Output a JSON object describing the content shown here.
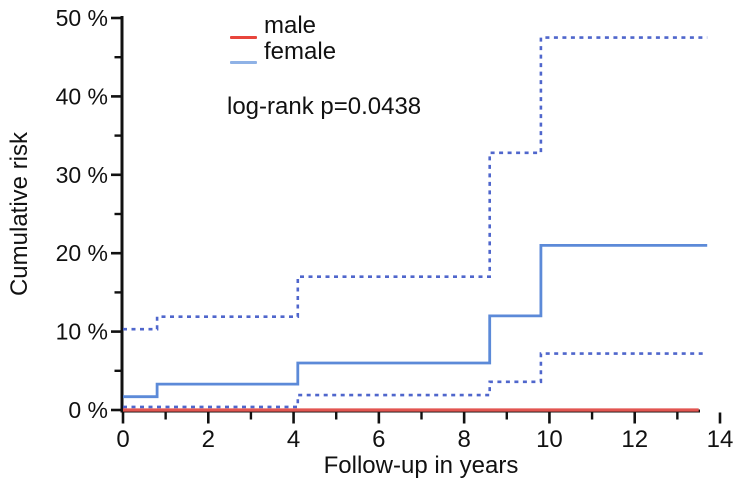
{
  "chart_data": {
    "type": "line",
    "subtype": "step-cumulative-incidence",
    "title": "",
    "xlabel": "Follow-up in years",
    "ylabel": "Cumulative risk",
    "annotation": "log-rank p=0.0438",
    "xlim": [
      0,
      14
    ],
    "ylim": [
      0,
      50
    ],
    "grid": false,
    "xticks": {
      "major": [
        0,
        2,
        4,
        6,
        8,
        10,
        12,
        14
      ],
      "labels": [
        "0",
        "2",
        "4",
        "6",
        "8",
        "10",
        "12",
        "14"
      ],
      "minor": [
        1,
        3,
        5,
        7,
        9,
        11,
        13
      ]
    },
    "yticks": {
      "major": [
        0,
        10,
        20,
        30,
        40,
        50
      ],
      "labels": [
        "0 %",
        "10 %",
        "20 %",
        "30 %",
        "40 %",
        "50 %"
      ],
      "minor": [
        5,
        15,
        25,
        35,
        45
      ]
    },
    "legend": {
      "position": "top-center",
      "entries": [
        {
          "label": "male",
          "color": "#e8453c"
        },
        {
          "label": "female",
          "color": "#8fb2e6"
        }
      ]
    },
    "series": [
      {
        "name": "female-upper-ci",
        "group": "female",
        "role": "upper-95ci",
        "color": "#4f66cc",
        "style": "dashed",
        "width": 2.6,
        "x": [
          0,
          0.8,
          4.1,
          8.6,
          9.8,
          13.7
        ],
        "y": [
          10.3,
          11.9,
          17.0,
          32.8,
          47.5,
          47.5
        ]
      },
      {
        "name": "female-lower-ci",
        "group": "female",
        "role": "lower-95ci",
        "color": "#4f66cc",
        "style": "dashed",
        "width": 2.6,
        "x": [
          0,
          4.1,
          8.6,
          9.8,
          13.7
        ],
        "y": [
          0.4,
          1.9,
          3.6,
          7.2,
          7.2
        ]
      },
      {
        "name": "female",
        "group": "female",
        "role": "estimate",
        "color": "#5c8ad8",
        "style": "solid",
        "width": 2.8,
        "x": [
          0,
          0.8,
          4.1,
          8.6,
          9.8,
          13.7
        ],
        "y": [
          1.7,
          3.3,
          6.0,
          12.0,
          21.0,
          21.0
        ]
      },
      {
        "name": "male",
        "group": "male",
        "role": "estimate",
        "color": "#e25550",
        "style": "solid",
        "width": 3.2,
        "x": [
          0,
          13.5
        ],
        "y": [
          0,
          0
        ]
      }
    ]
  }
}
